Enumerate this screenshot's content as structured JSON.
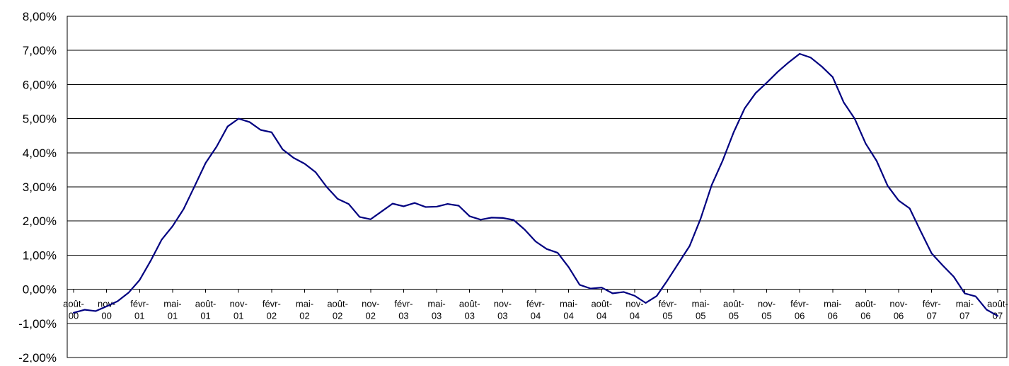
{
  "chart_data": {
    "type": "line",
    "title": "",
    "xlabel": "",
    "ylabel": "",
    "ylim": [
      -0.02,
      0.08
    ],
    "ytick_labels": [
      "-2,00%",
      "-1,00%",
      "0,00%",
      "1,00%",
      "2,00%",
      "3,00%",
      "4,00%",
      "5,00%",
      "6,00%",
      "7,00%",
      "8,00%"
    ],
    "xtick_labels": [
      [
        "août-",
        "00"
      ],
      [
        "nov-",
        "00"
      ],
      [
        "févr-",
        "01"
      ],
      [
        "mai-",
        "01"
      ],
      [
        "août-",
        "01"
      ],
      [
        "nov-",
        "01"
      ],
      [
        "févr-",
        "02"
      ],
      [
        "mai-",
        "02"
      ],
      [
        "août-",
        "02"
      ],
      [
        "nov-",
        "02"
      ],
      [
        "févr-",
        "03"
      ],
      [
        "mai-",
        "03"
      ],
      [
        "août-",
        "03"
      ],
      [
        "nov-",
        "03"
      ],
      [
        "févr-",
        "04"
      ],
      [
        "mai-",
        "04"
      ],
      [
        "août-",
        "04"
      ],
      [
        "nov-",
        "04"
      ],
      [
        "févr-",
        "05"
      ],
      [
        "mai-",
        "05"
      ],
      [
        "août-",
        "05"
      ],
      [
        "nov-",
        "05"
      ],
      [
        "févr-",
        "06"
      ],
      [
        "mai-",
        "06"
      ],
      [
        "août-",
        "06"
      ],
      [
        "nov-",
        "06"
      ],
      [
        "févr-",
        "07"
      ],
      [
        "mai-",
        "07"
      ],
      [
        "août-",
        "07"
      ]
    ],
    "grid": true,
    "line_color": "#000080",
    "series": [
      {
        "values": [
          -0.0069,
          -0.006,
          -0.0064,
          -0.005,
          -0.0035,
          -0.001,
          0.0027,
          0.0083,
          0.0145,
          0.0185,
          0.0235,
          0.0302,
          0.037,
          0.0418,
          0.0477,
          0.05,
          0.049,
          0.0467,
          0.046,
          0.041,
          0.0385,
          0.0368,
          0.0343,
          0.03,
          0.0265,
          0.025,
          0.0212,
          0.0205,
          0.0228,
          0.0251,
          0.0243,
          0.0253,
          0.0241,
          0.0242,
          0.025,
          0.0245,
          0.0214,
          0.0204,
          0.021,
          0.0209,
          0.0203,
          0.0175,
          0.014,
          0.0118,
          0.0107,
          0.0065,
          0.0013,
          0.0002,
          0.0005,
          -0.0012,
          -0.0008,
          -0.0019,
          -0.004,
          -0.002,
          0.0027,
          0.0077,
          0.0127,
          0.0207,
          0.0305,
          0.0377,
          0.046,
          0.053,
          0.0575,
          0.0605,
          0.0637,
          0.0665,
          0.069,
          0.0679,
          0.0653,
          0.0622,
          0.0548,
          0.05,
          0.0427,
          0.0376,
          0.0303,
          0.026,
          0.0237,
          0.017,
          0.0105,
          0.007,
          0.0037,
          -0.0012,
          -0.0021,
          -0.006,
          -0.0078
        ]
      }
    ]
  }
}
